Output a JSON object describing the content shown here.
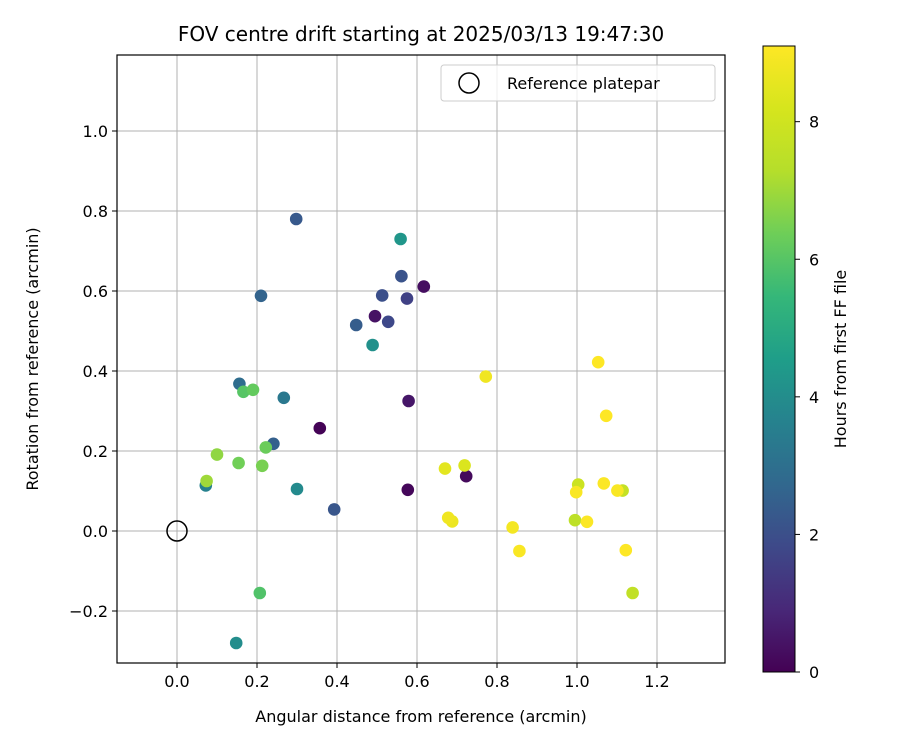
{
  "chart_data": {
    "type": "scatter",
    "title": "FOV centre drift starting at 2025/03/13 19:47:30",
    "xlabel": "Angular distance from reference (arcmin)",
    "ylabel": "Rotation from reference (arcmin)",
    "xlim": [
      -0.15,
      1.37
    ],
    "ylim": [
      -0.33,
      1.19
    ],
    "xticks": [
      0.0,
      0.2,
      0.4,
      0.6,
      0.8,
      1.0,
      1.2
    ],
    "yticks": [
      -0.2,
      0.0,
      0.2,
      0.4,
      0.6,
      0.8,
      1.0
    ],
    "xtick_labels": [
      "0.0",
      "0.2",
      "0.4",
      "0.6",
      "0.8",
      "1.0",
      "1.2"
    ],
    "ytick_labels": [
      "−0.2",
      "0.0",
      "0.2",
      "0.4",
      "0.6",
      "0.8",
      "1.0"
    ],
    "grid": true,
    "legend": {
      "position": "top-right",
      "label": "Reference platepar"
    },
    "reference_point": {
      "x": 0.0,
      "y": 0.0
    },
    "colorbar": {
      "label": "Hours from first FF file",
      "colormap": "viridis",
      "range": [
        0,
        9.1
      ],
      "ticks": [
        0,
        2,
        4,
        6,
        8
      ],
      "tick_labels": [
        "0",
        "2",
        "4",
        "6",
        "8"
      ]
    },
    "points": [
      {
        "x": 0.357,
        "y": 0.257,
        "hours": 0.05
      },
      {
        "x": 0.577,
        "y": 0.103,
        "hours": 0.15
      },
      {
        "x": 0.723,
        "y": 0.137,
        "hours": 0.2
      },
      {
        "x": 0.617,
        "y": 0.611,
        "hours": 0.3
      },
      {
        "x": 0.495,
        "y": 0.537,
        "hours": 0.4
      },
      {
        "x": 0.579,
        "y": 0.325,
        "hours": 0.5
      },
      {
        "x": 0.575,
        "y": 0.581,
        "hours": 1.6
      },
      {
        "x": 0.528,
        "y": 0.523,
        "hours": 1.8
      },
      {
        "x": 0.513,
        "y": 0.589,
        "hours": 2.0
      },
      {
        "x": 0.561,
        "y": 0.637,
        "hours": 2.1
      },
      {
        "x": 0.393,
        "y": 0.054,
        "hours": 2.2
      },
      {
        "x": 0.298,
        "y": 0.78,
        "hours": 2.3
      },
      {
        "x": 0.448,
        "y": 0.515,
        "hours": 2.4
      },
      {
        "x": 0.21,
        "y": 0.588,
        "hours": 2.6
      },
      {
        "x": 0.241,
        "y": 0.218,
        "hours": 2.5
      },
      {
        "x": 0.156,
        "y": 0.368,
        "hours": 2.9
      },
      {
        "x": 0.267,
        "y": 0.333,
        "hours": 3.3
      },
      {
        "x": 0.072,
        "y": 0.114,
        "hours": 3.6
      },
      {
        "x": 0.3,
        "y": 0.105,
        "hours": 3.9
      },
      {
        "x": 0.148,
        "y": -0.28,
        "hours": 4.0
      },
      {
        "x": 0.489,
        "y": 0.465,
        "hours": 4.1
      },
      {
        "x": 0.559,
        "y": 0.73,
        "hours": 4.3
      },
      {
        "x": 0.207,
        "y": -0.155,
        "hours": 5.9
      },
      {
        "x": 0.166,
        "y": 0.348,
        "hours": 6.0
      },
      {
        "x": 0.19,
        "y": 0.353,
        "hours": 6.2
      },
      {
        "x": 0.222,
        "y": 0.209,
        "hours": 6.3
      },
      {
        "x": 0.154,
        "y": 0.17,
        "hours": 6.4
      },
      {
        "x": 0.213,
        "y": 0.163,
        "hours": 6.5
      },
      {
        "x": 0.1,
        "y": 0.191,
        "hours": 6.8
      },
      {
        "x": 0.074,
        "y": 0.125,
        "hours": 7.0
      },
      {
        "x": 0.995,
        "y": 0.027,
        "hours": 7.5
      },
      {
        "x": 1.139,
        "y": -0.155,
        "hours": 7.6
      },
      {
        "x": 1.114,
        "y": 0.101,
        "hours": 7.7
      },
      {
        "x": 1.003,
        "y": 0.116,
        "hours": 7.9
      },
      {
        "x": 0.719,
        "y": 0.164,
        "hours": 8.3
      },
      {
        "x": 0.67,
        "y": 0.156,
        "hours": 8.5
      },
      {
        "x": 0.772,
        "y": 0.386,
        "hours": 8.8
      },
      {
        "x": 0.688,
        "y": 0.024,
        "hours": 8.7
      },
      {
        "x": 0.678,
        "y": 0.033,
        "hours": 8.8
      },
      {
        "x": 0.839,
        "y": 0.009,
        "hours": 8.9
      },
      {
        "x": 0.856,
        "y": -0.05,
        "hours": 9.0
      },
      {
        "x": 0.998,
        "y": 0.097,
        "hours": 9.0
      },
      {
        "x": 1.025,
        "y": 0.023,
        "hours": 9.05
      },
      {
        "x": 1.053,
        "y": 0.422,
        "hours": 9.1
      },
      {
        "x": 1.073,
        "y": 0.288,
        "hours": 9.1
      },
      {
        "x": 1.067,
        "y": 0.119,
        "hours": 9.05
      },
      {
        "x": 1.101,
        "y": 0.101,
        "hours": 9.0
      },
      {
        "x": 1.122,
        "y": -0.048,
        "hours": 9.1
      }
    ]
  }
}
